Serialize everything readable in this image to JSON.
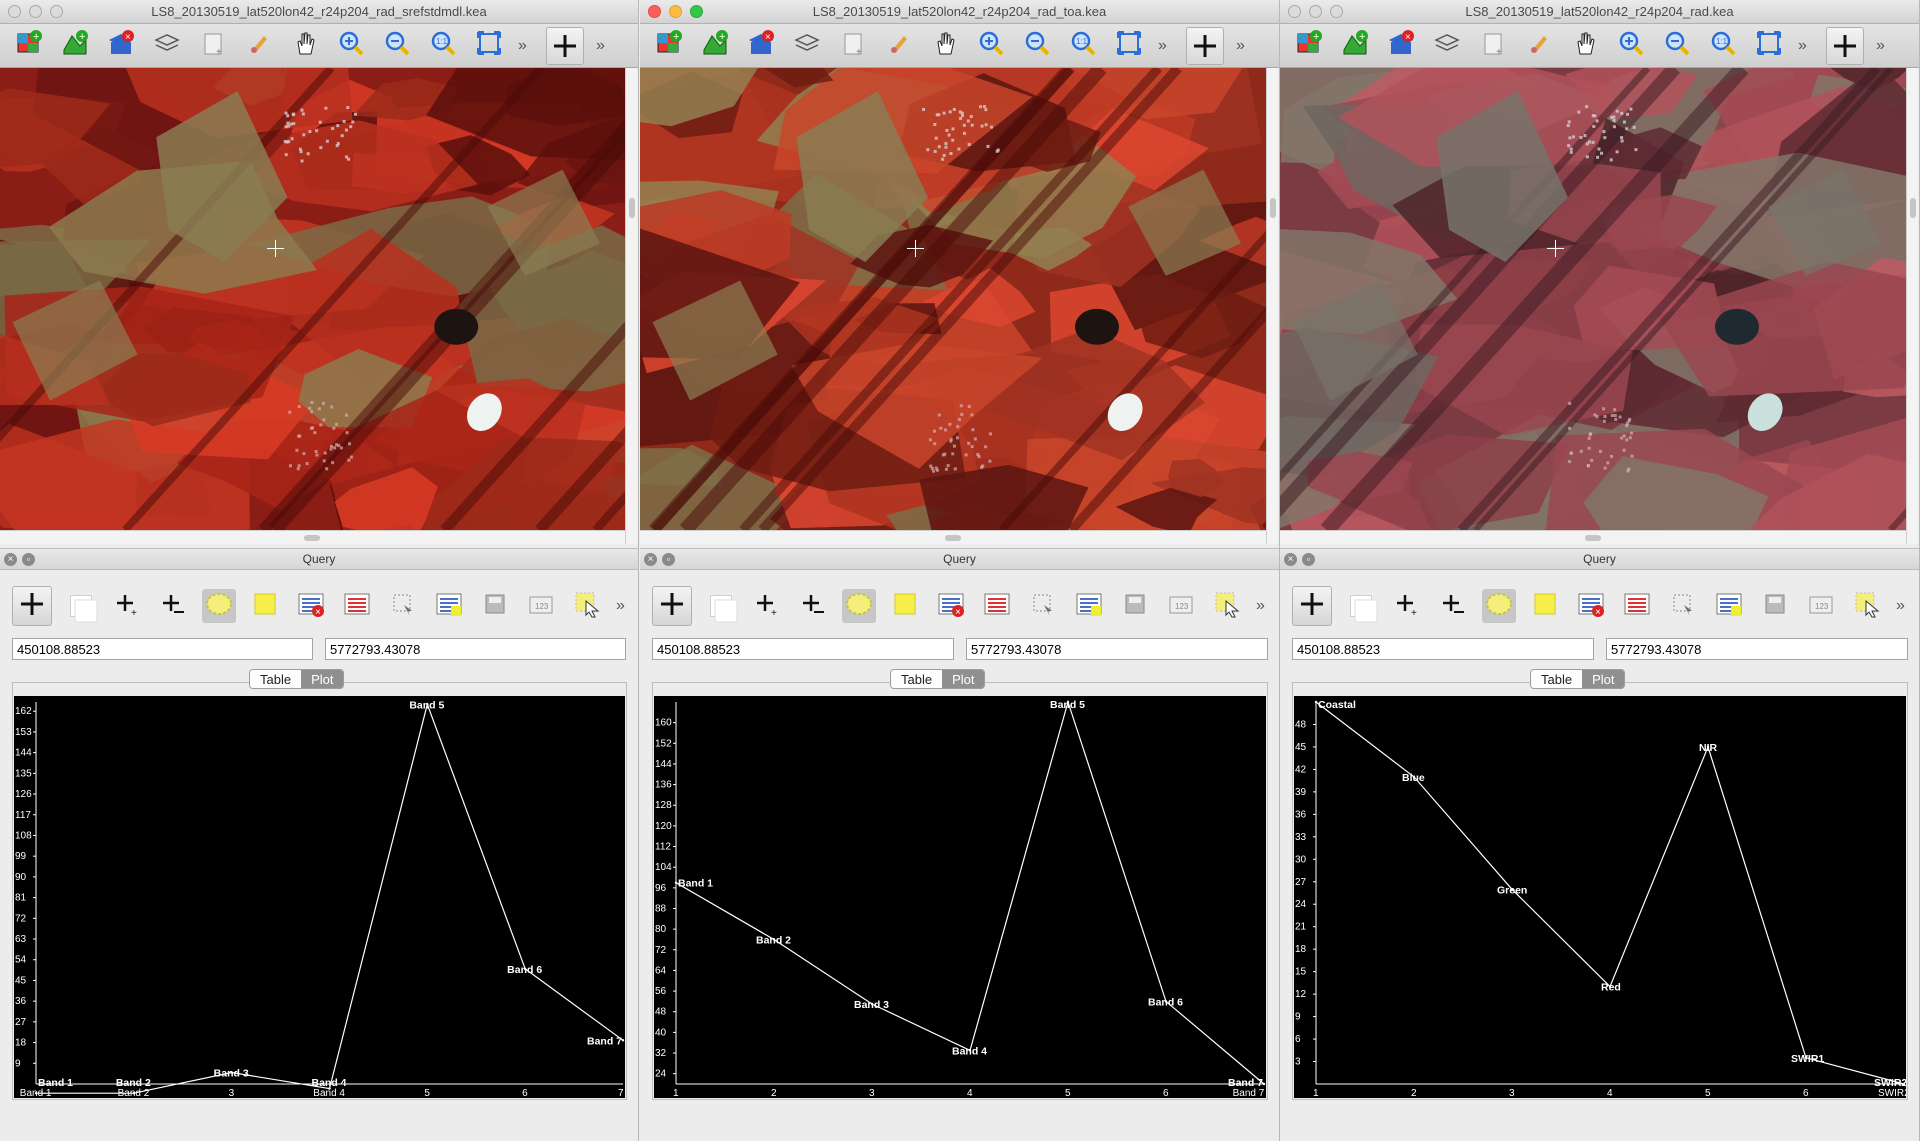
{
  "windows": [
    {
      "title": "LS8_20130519_lat520lon42_r24p204_rad_srefstdmdl.kea",
      "lights_active": false,
      "image_tint": "srefstdmdl",
      "query": {
        "title": "Query",
        "easting": "450108.88523",
        "northing": "5772793.43078",
        "tabs": [
          "Table",
          "Plot"
        ],
        "active_tab": "Plot"
      },
      "chart_data": {
        "type": "line",
        "x": [
          1,
          2,
          3,
          4,
          5,
          6,
          7
        ],
        "values": [
          -4,
          -4,
          5,
          -2,
          165,
          50,
          19
        ],
        "point_labels": [
          "Band 1",
          "Band 2",
          "Band 3",
          "Band 4",
          "Band 5",
          "Band 6",
          "Band 7"
        ],
        "xticks": [
          "Band 1",
          "Band 2",
          "3",
          "Band 4",
          "5",
          "6",
          "7"
        ],
        "yticks": [
          "9",
          "18",
          "27",
          "36",
          "45",
          "54",
          "63",
          "72",
          "81",
          "90",
          "99",
          "108",
          "117",
          "126",
          "135",
          "144",
          "153",
          "162"
        ],
        "ylim": [
          0,
          166
        ],
        "xlim": [
          1,
          7
        ]
      }
    },
    {
      "title": "LS8_20130519_lat520lon42_r24p204_rad_toa.kea",
      "lights_active": true,
      "image_tint": "toa",
      "query": {
        "title": "Query",
        "easting": "450108.88523",
        "northing": "5772793.43078",
        "tabs": [
          "Table",
          "Plot"
        ],
        "active_tab": "Plot"
      },
      "chart_data": {
        "type": "line",
        "x": [
          1,
          2,
          3,
          4,
          5,
          6,
          7
        ],
        "values": [
          98,
          76,
          51,
          33,
          168,
          52,
          20
        ],
        "point_labels": [
          "Band 1",
          "Band 2",
          "Band 3",
          "Band 4",
          "Band 5",
          "Band 6",
          "Band 7"
        ],
        "xticks": [
          "1",
          "2",
          "3",
          "4",
          "5",
          "6",
          "Band 7"
        ],
        "yticks": [
          "24",
          "32",
          "40",
          "48",
          "56",
          "64",
          "72",
          "80",
          "88",
          "96",
          "104",
          "112",
          "120",
          "128",
          "136",
          "144",
          "152",
          "160"
        ],
        "ylim": [
          20,
          168
        ],
        "xlim": [
          1,
          7
        ]
      }
    },
    {
      "title": "LS8_20130519_lat520lon42_r24p204_rad.kea",
      "lights_active": false,
      "image_tint": "rad",
      "query": {
        "title": "Query",
        "easting": "450108.88523",
        "northing": "5772793.43078",
        "tabs": [
          "Table",
          "Plot"
        ],
        "active_tab": "Plot"
      },
      "chart_data": {
        "type": "line",
        "x": [
          1,
          2,
          3,
          4,
          5,
          6,
          7
        ],
        "values": [
          51,
          41,
          26,
          13,
          45,
          3.5,
          0
        ],
        "point_labels": [
          "Coastal",
          "Blue",
          "Green",
          "Red",
          "NIR",
          "SWIR1",
          "SWIR2"
        ],
        "xticks": [
          "1",
          "2",
          "3",
          "4",
          "5",
          "6",
          "SWIR2"
        ],
        "yticks": [
          "3",
          "6",
          "9",
          "12",
          "15",
          "18",
          "21",
          "24",
          "27",
          "30",
          "33",
          "36",
          "39",
          "42",
          "45",
          "48"
        ],
        "ylim": [
          0,
          51
        ],
        "xlim": [
          1,
          7
        ]
      }
    }
  ]
}
